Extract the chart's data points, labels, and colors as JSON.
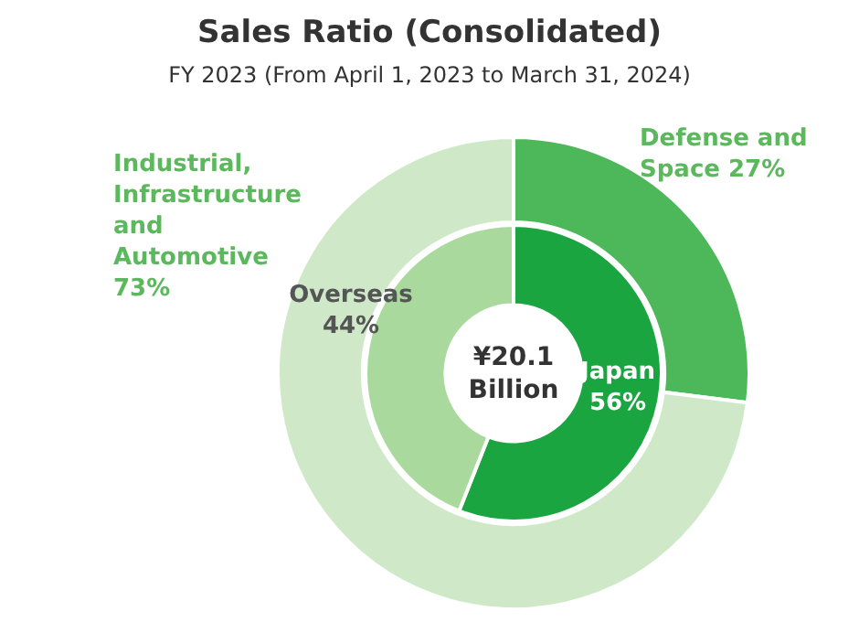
{
  "chart_data": [
    {
      "type": "donut",
      "title": "Sales Ratio (Consolidated)",
      "subtitle": "FY 2023  (From April 1, 2023 to March 31, 2024)",
      "categories": [
        "Defense and Space",
        "Industrial, Infrastructure and Automotive"
      ],
      "values": [
        27,
        73
      ],
      "colors": [
        "#4cb85a",
        "#cfe9c8"
      ],
      "value_labels": [
        "27%",
        "73%"
      ],
      "legend": false
    },
    {
      "type": "donut",
      "categories": [
        "Japan",
        "Overseas"
      ],
      "values": [
        56,
        44
      ],
      "colors": [
        "#1aa540",
        "#a9d99c"
      ],
      "value_labels": [
        "56%",
        "44%"
      ],
      "annotations": [
        "¥20.1 Billion"
      ],
      "legend": false
    }
  ]
}
